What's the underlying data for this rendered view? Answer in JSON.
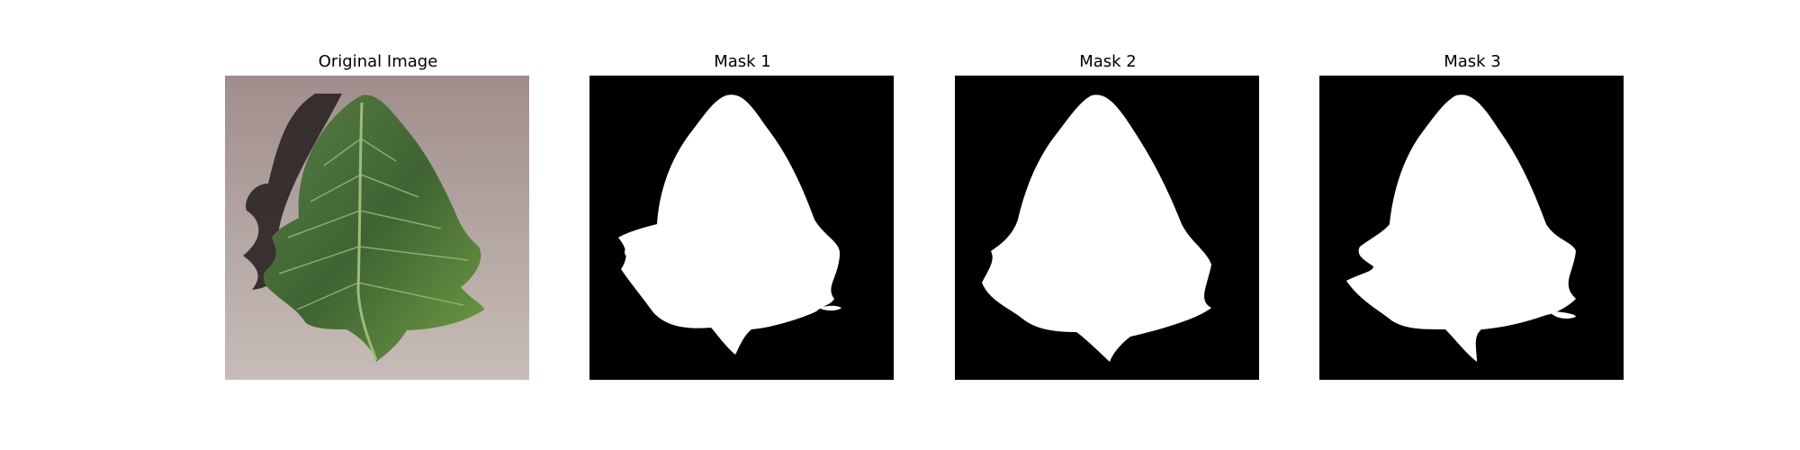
{
  "panels": [
    {
      "title": "Original Image",
      "kind": "photo"
    },
    {
      "title": "Mask 1",
      "kind": "mask"
    },
    {
      "title": "Mask 2",
      "kind": "mask"
    },
    {
      "title": "Mask 3",
      "kind": "mask"
    }
  ],
  "colors": {
    "mask_background": "#000000",
    "mask_foreground": "#ffffff",
    "leaf_dark": "#2f4a25",
    "leaf_mid": "#4f7a3a",
    "leaf_light": "#7aa84e",
    "paper": "#a59390",
    "shadow": "#2b2422"
  }
}
